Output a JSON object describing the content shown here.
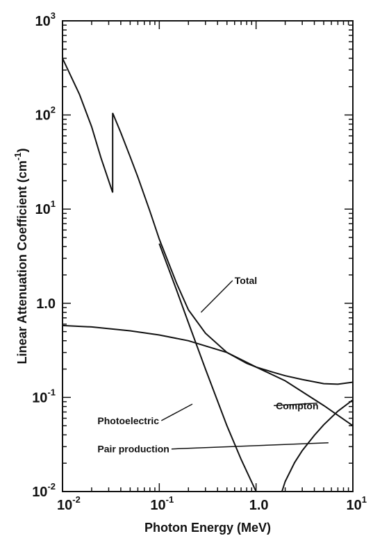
{
  "chart_data": {
    "type": "line",
    "title": "",
    "xlabel": "Photon Energy (MeV)",
    "ylabel_parts": [
      "Linear Attenuation Coefficient  (cm",
      "-1",
      ")"
    ],
    "xscale": "log",
    "yscale": "log",
    "xlim": [
      0.01,
      10
    ],
    "ylim": [
      0.01,
      1000
    ],
    "grid": false,
    "x_ticks": [
      {
        "value": 0.01,
        "base": "10",
        "exp": "-2"
      },
      {
        "value": 0.1,
        "base": "10",
        "exp": "-1"
      },
      {
        "value": 1,
        "base": "1.0",
        "exp": ""
      },
      {
        "value": 10,
        "base": "10",
        "exp": "1"
      }
    ],
    "y_ticks": [
      {
        "value": 0.01,
        "base": "10",
        "exp": "-2"
      },
      {
        "value": 0.1,
        "base": "10",
        "exp": "-1"
      },
      {
        "value": 1,
        "base": "1.0",
        "exp": ""
      },
      {
        "value": 10,
        "base": "10",
        "exp": "1"
      },
      {
        "value": 100,
        "base": "10",
        "exp": "2"
      },
      {
        "value": 1000,
        "base": "10",
        "exp": "3"
      }
    ],
    "series": [
      {
        "name": "Total",
        "x": [
          0.01,
          0.015,
          0.02,
          0.025,
          0.03,
          0.033,
          0.033,
          0.04,
          0.05,
          0.06,
          0.08,
          0.1,
          0.15,
          0.2,
          0.3,
          0.5,
          0.8,
          1,
          1.5,
          2,
          3,
          5,
          7,
          10
        ],
        "y": [
          400,
          165,
          75,
          35,
          20,
          15,
          105,
          65,
          36,
          22,
          9.5,
          4.8,
          1.65,
          0.85,
          0.48,
          0.3,
          0.23,
          0.21,
          0.185,
          0.17,
          0.155,
          0.14,
          0.138,
          0.145
        ]
      },
      {
        "name": "Photoelectric",
        "x": [
          0.1,
          0.15,
          0.2,
          0.3,
          0.5,
          0.7,
          1.0
        ],
        "y": [
          4.3,
          1.4,
          0.62,
          0.2,
          0.05,
          0.022,
          0.01
        ]
      },
      {
        "name": "Compton",
        "x": [
          0.01,
          0.02,
          0.05,
          0.1,
          0.2,
          0.5,
          1,
          2,
          5,
          10
        ],
        "y": [
          0.58,
          0.56,
          0.51,
          0.46,
          0.4,
          0.3,
          0.21,
          0.15,
          0.082,
          0.05
        ]
      },
      {
        "name": "Pair production",
        "x": [
          1.85,
          2,
          2.5,
          3,
          4,
          5,
          7,
          10
        ],
        "y": [
          0.01,
          0.0128,
          0.0203,
          0.0272,
          0.0396,
          0.0512,
          0.0713,
          0.094
        ]
      }
    ],
    "annotations": [
      {
        "text": "Total",
        "series": "Total",
        "x": 0.6,
        "y": 1.6,
        "point_x": 0.27,
        "point_y": 0.8
      },
      {
        "text": "Photoelectric",
        "series": "Photoelectric",
        "x": 0.023,
        "y": 0.052,
        "point_x": 0.22,
        "point_y": 0.085
      },
      {
        "text": "Compton",
        "series": "Compton",
        "x": 1.6,
        "y": 0.075,
        "point_x": 4.3,
        "point_y": 0.087
      },
      {
        "text": "Pair production",
        "series": "Pair production",
        "x": 0.023,
        "y": 0.026,
        "point_x": 5.6,
        "point_y": 0.033
      }
    ]
  }
}
